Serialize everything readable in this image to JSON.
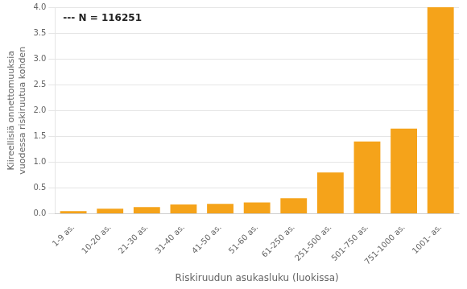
{
  "chart_data": {
    "type": "bar",
    "categories": [
      "1-9 as.",
      "10-20 as.",
      "21-30 as.",
      "31-40 as.",
      "41-50 as.",
      "51-60 as.",
      "61-250 as.",
      "251-500 as.",
      "501-750 as.",
      "751-1000 as.",
      "1001- as."
    ],
    "values": [
      0.05,
      0.1,
      0.13,
      0.18,
      0.19,
      0.22,
      0.3,
      0.8,
      1.4,
      1.65,
      4.0
    ],
    "color": "#F5A31A",
    "ylabel": "Kiireellisiä onnettomuuksia\nvuodessa riskiruutua kohden",
    "xlabel": "Riskiruudun asukasluku (luokissa)",
    "annotation": "--- N = 116251",
    "ylim": [
      0.0,
      4.0
    ],
    "yticks": [
      {
        "value": 0.0,
        "label": "0.0"
      },
      {
        "value": 0.5,
        "label": "0.5"
      },
      {
        "value": 1.0,
        "label": "1.0"
      },
      {
        "value": 1.5,
        "label": "1.5"
      },
      {
        "value": 2.0,
        "label": "2.0"
      },
      {
        "value": 2.5,
        "label": "2.5"
      },
      {
        "value": 3.0,
        "label": "3.0"
      },
      {
        "value": 3.5,
        "label": "3.5"
      },
      {
        "value": 4.0,
        "label": "4.0"
      }
    ],
    "grid": true
  }
}
